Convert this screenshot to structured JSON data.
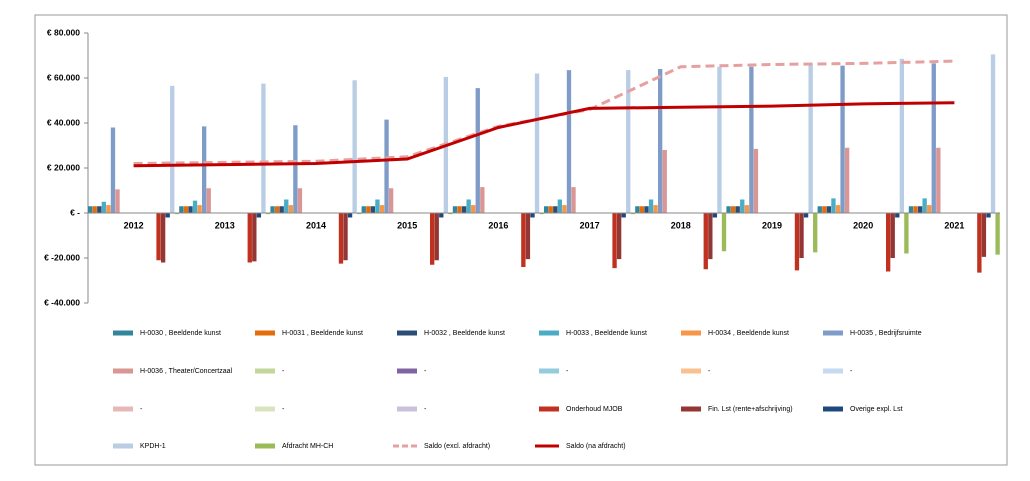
{
  "chart_data": {
    "type": "bar",
    "categories": [
      "2012",
      "2013",
      "2014",
      "2015",
      "2016",
      "2017",
      "2018",
      "2019",
      "2020",
      "2021"
    ],
    "ylim": [
      -40000,
      80000
    ],
    "yticks": [
      {
        "value": -40000,
        "label": "€ -40.000"
      },
      {
        "value": -20000,
        "label": "€ -20.000"
      },
      {
        "value": 0,
        "label": "€ -"
      },
      {
        "value": 20000,
        "label": "€ 20.000"
      },
      {
        "value": 40000,
        "label": "€ 40.000"
      },
      {
        "value": 60000,
        "label": "€ 60.000"
      },
      {
        "value": 80000,
        "label": "€ 80.000"
      }
    ],
    "grid": false,
    "legend": "bottom",
    "series": [
      {
        "name": "H-0030 , Beeldende kunst",
        "color": "#31859c",
        "values": [
          3000,
          3000,
          3000,
          3000,
          3000,
          3000,
          3000,
          3000,
          3000,
          3000
        ]
      },
      {
        "name": "H-0031 , Beeldende kunst",
        "color": "#e46c0a",
        "values": [
          3000,
          3000,
          3000,
          3000,
          3000,
          3000,
          3000,
          3000,
          3000,
          3000
        ]
      },
      {
        "name": "H-0032 , Beeldende kunst",
        "color": "#2c4d75",
        "values": [
          3000,
          3000,
          3000,
          3000,
          3000,
          3000,
          3000,
          3000,
          3000,
          3000
        ]
      },
      {
        "name": "H-0033 , Beeldende kunst",
        "color": "#4bacc6",
        "values": [
          5000,
          5500,
          6000,
          6000,
          6000,
          6000,
          6000,
          6000,
          6500,
          6500
        ]
      },
      {
        "name": "H-0034 , Beeldende kunst",
        "color": "#f79646",
        "values": [
          3500,
          3500,
          3500,
          3500,
          3500,
          3500,
          3500,
          3500,
          3500,
          3500
        ]
      },
      {
        "name": "H-0035 , Bedrijfsruimte",
        "color": "#7f9cc9",
        "values": [
          38000,
          38500,
          39000,
          41500,
          55500,
          63500,
          64000,
          65000,
          65500,
          66500
        ]
      },
      {
        "name": "H-0036 , Theater/Concertzaal",
        "color": "#d99694",
        "values": [
          10500,
          11000,
          11000,
          11000,
          11500,
          11500,
          28000,
          28500,
          29000,
          29000
        ]
      },
      {
        "name": "-",
        "color": "#c3d69b",
        "values": [
          null,
          null,
          null,
          null,
          null,
          null,
          null,
          null,
          null,
          null
        ]
      },
      {
        "name": "-",
        "color": "#8064a2",
        "values": [
          null,
          null,
          null,
          null,
          null,
          null,
          null,
          null,
          null,
          null
        ]
      },
      {
        "name": "-",
        "color": "#93cddd",
        "values": [
          null,
          null,
          null,
          null,
          null,
          null,
          null,
          null,
          null,
          null
        ]
      },
      {
        "name": "-",
        "color": "#fac090",
        "values": [
          null,
          null,
          null,
          null,
          null,
          null,
          null,
          null,
          null,
          null
        ]
      },
      {
        "name": "-",
        "color": "#c6d9f1",
        "values": [
          null,
          null,
          null,
          null,
          null,
          null,
          null,
          null,
          null,
          null
        ]
      },
      {
        "name": "-",
        "color": "#e6b9b8",
        "values": [
          null,
          null,
          null,
          null,
          null,
          null,
          null,
          null,
          null,
          null
        ]
      },
      {
        "name": "-",
        "color": "#d7e4bd",
        "values": [
          null,
          null,
          null,
          null,
          null,
          null,
          null,
          null,
          null,
          null
        ]
      },
      {
        "name": "-",
        "color": "#ccc1da",
        "values": [
          null,
          null,
          null,
          null,
          null,
          null,
          null,
          null,
          null,
          null
        ]
      },
      {
        "name": "Onderhoud MJOB",
        "color": "#c0311f",
        "values": [
          -21000,
          -22000,
          -22500,
          -23000,
          -24000,
          -24500,
          -25000,
          -25500,
          -26000,
          -26500
        ]
      },
      {
        "name": "Fin. Lst (rente+afschrijving)",
        "color": "#943634",
        "values": [
          -22000,
          -21500,
          -21000,
          -21000,
          -20500,
          -20500,
          -20500,
          -20000,
          -20000,
          -19500
        ]
      },
      {
        "name": "Overige expl. Lst",
        "color": "#1f497d",
        "values": [
          -2000,
          -2000,
          -2000,
          -2000,
          -2000,
          -2000,
          -2000,
          -2000,
          -2000,
          -2000
        ]
      },
      {
        "name": "KPDH-1",
        "color": "#b9cde5",
        "values": [
          56500,
          57500,
          59000,
          60500,
          62000,
          63500,
          65000,
          66500,
          68500,
          70500
        ]
      },
      {
        "name": "Afdracht MH-CH",
        "color": "#9bbb59",
        "values": [
          -500,
          -500,
          -500,
          -500,
          -500,
          -500,
          -17000,
          -17500,
          -18000,
          -18500
        ]
      },
      {
        "name": "Saldo (excl. afdracht)",
        "color": "#e6a0a0",
        "type": "line",
        "dashed": true,
        "values": [
          22000,
          22500,
          23000,
          25000,
          38500,
          46000,
          65000,
          66000,
          66500,
          67500
        ]
      },
      {
        "name": "Saldo (na afdracht)",
        "color": "#c00000",
        "type": "line",
        "dashed": false,
        "values": [
          21000,
          21500,
          22000,
          24000,
          38000,
          46500,
          47000,
          47500,
          48500,
          49000
        ]
      }
    ]
  }
}
